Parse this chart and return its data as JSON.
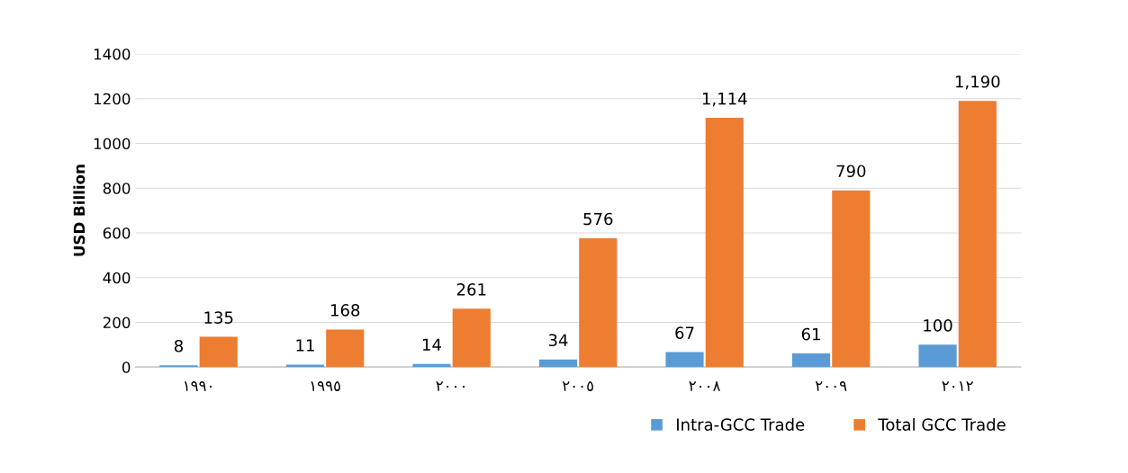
{
  "chart_data": {
    "type": "bar",
    "ylabel": "USD Billion",
    "categories": [
      "١٩٩٠",
      "١٩٩٥",
      "٢٠٠٠",
      "٢٠٠٥",
      "٢٠٠٨",
      "٢٠٠٩",
      "٢٠١٢"
    ],
    "series": [
      {
        "name": "Intra-GCC Trade",
        "color": "#5b9bd5",
        "values": [
          8,
          11,
          14,
          34,
          67,
          61,
          100
        ],
        "value_labels": [
          "8",
          "11",
          "14",
          "34",
          "67",
          "61",
          "100"
        ]
      },
      {
        "name": "Total GCC Trade",
        "color": "#ed7d31",
        "values": [
          135,
          168,
          261,
          576,
          1114,
          790,
          1190
        ],
        "value_labels": [
          "135",
          "168",
          "261",
          "576",
          "1,114",
          "790",
          "1,190"
        ]
      }
    ],
    "ylim": [
      0,
      1400
    ],
    "yticks": [
      0,
      200,
      400,
      600,
      800,
      1000,
      1200,
      1400
    ],
    "grid": "y",
    "legend": "bottom right"
  }
}
